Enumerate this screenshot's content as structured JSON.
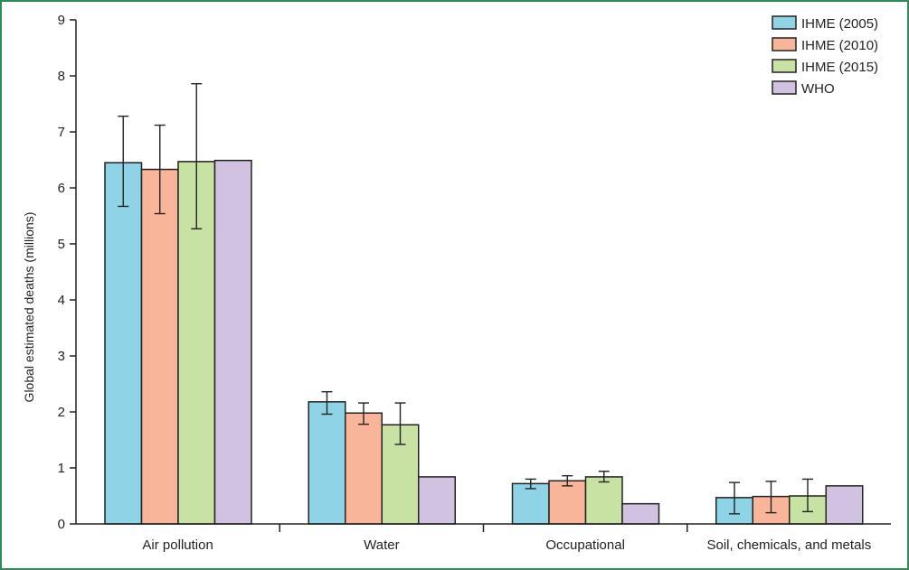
{
  "chart_data": {
    "type": "bar",
    "title": "",
    "xlabel": "",
    "ylabel": "Global estimated deaths (millions)",
    "ylim": [
      0,
      9
    ],
    "yticks": [
      0,
      1,
      2,
      3,
      4,
      5,
      6,
      7,
      8,
      9
    ],
    "categories": [
      "Air pollution",
      "Water",
      "Occupational",
      "Soil, chemicals, and metals"
    ],
    "legend_position": "top-right",
    "grid": false,
    "series": [
      {
        "name": "IHME (2005)",
        "color": "#8fd3e6",
        "values": [
          6.45,
          2.18,
          0.72,
          0.47
        ],
        "error_low": [
          5.67,
          1.96,
          0.63,
          0.18
        ],
        "error_high": [
          7.28,
          2.36,
          0.8,
          0.74
        ]
      },
      {
        "name": "IHME (2010)",
        "color": "#f9b59a",
        "values": [
          6.33,
          1.98,
          0.77,
          0.49
        ],
        "error_low": [
          5.54,
          1.78,
          0.68,
          0.2
        ],
        "error_high": [
          7.12,
          2.16,
          0.86,
          0.76
        ]
      },
      {
        "name": "IHME (2015)",
        "color": "#c8e2a3",
        "values": [
          6.47,
          1.77,
          0.84,
          0.5
        ],
        "error_low": [
          5.27,
          1.42,
          0.75,
          0.22
        ],
        "error_high": [
          7.86,
          2.16,
          0.94,
          0.8
        ]
      },
      {
        "name": "WHO",
        "color": "#d1c2e2",
        "values": [
          6.49,
          0.84,
          0.36,
          0.68
        ],
        "error_low": [
          null,
          null,
          null,
          null
        ],
        "error_high": [
          null,
          null,
          null,
          null
        ]
      }
    ]
  }
}
